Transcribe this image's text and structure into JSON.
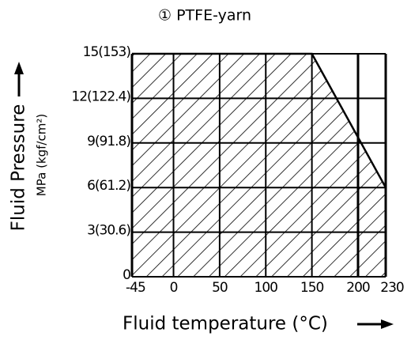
{
  "chart_data": {
    "type": "area",
    "title": "① PTFE-yarn",
    "ylabel": "Fluid Pressure",
    "ylabel_unit": "MPa (kgf/cm²)",
    "xlabel": "Fluid temperature (°C)",
    "x": [
      -45,
      150,
      230
    ],
    "values": [
      15,
      15,
      6
    ],
    "color": "#000000",
    "xlim": [
      -45,
      230
    ],
    "xticks": [
      -45,
      0,
      50,
      100,
      150,
      200,
      230
    ],
    "ylim": [
      0,
      15
    ],
    "yticks": [
      0,
      {
        "value": 3,
        "label": "3(30.6)"
      },
      {
        "value": 6,
        "label": "6(61.2)"
      },
      {
        "value": 9,
        "label": "9(91.8)"
      },
      {
        "value": 12,
        "label": "12(122.4)"
      },
      {
        "value": 15,
        "label": "15(153)"
      }
    ],
    "grid": true
  }
}
